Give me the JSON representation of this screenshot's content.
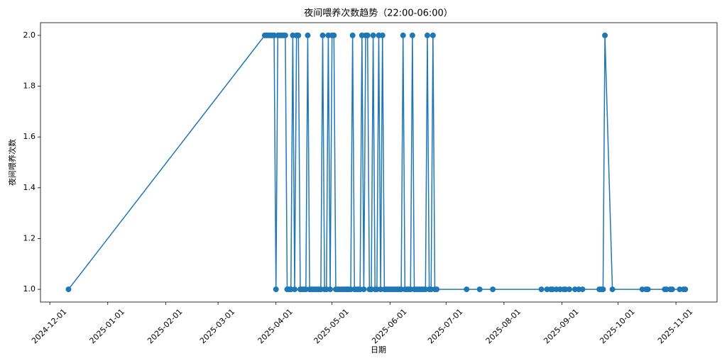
{
  "chart_data": {
    "type": "line",
    "title": "夜间喂养次数趋势（22:00-06:00）",
    "x_label": "日期",
    "y_label": "夜间喂养次数",
    "color": "#1f77b4",
    "x": [
      "2024-12-11",
      "2025-03-26",
      "2025-03-27",
      "2025-03-28",
      "2025-03-29",
      "2025-03-30",
      "2025-03-31",
      "2025-04-01",
      "2025-04-02",
      "2025-04-03",
      "2025-04-04",
      "2025-04-05",
      "2025-04-06",
      "2025-04-07",
      "2025-04-08",
      "2025-04-09",
      "2025-04-10",
      "2025-04-11",
      "2025-04-12",
      "2025-04-13",
      "2025-04-14",
      "2025-04-15",
      "2025-04-16",
      "2025-04-17",
      "2025-04-18",
      "2025-04-19",
      "2025-04-20",
      "2025-04-21",
      "2025-04-22",
      "2025-04-23",
      "2025-04-24",
      "2025-04-25",
      "2025-04-26",
      "2025-04-27",
      "2025-04-28",
      "2025-04-29",
      "2025-04-30",
      "2025-05-01",
      "2025-05-02",
      "2025-05-03",
      "2025-05-04",
      "2025-05-05",
      "2025-05-06",
      "2025-05-07",
      "2025-05-08",
      "2025-05-09",
      "2025-05-10",
      "2025-05-11",
      "2025-05-12",
      "2025-05-13",
      "2025-05-14",
      "2025-05-15",
      "2025-05-16",
      "2025-05-17",
      "2025-05-18",
      "2025-05-19",
      "2025-05-20",
      "2025-05-21",
      "2025-05-22",
      "2025-05-23",
      "2025-05-24",
      "2025-05-25",
      "2025-05-26",
      "2025-05-27",
      "2025-05-28",
      "2025-05-29",
      "2025-05-30",
      "2025-05-31",
      "2025-06-01",
      "2025-06-02",
      "2025-06-03",
      "2025-06-04",
      "2025-06-05",
      "2025-06-06",
      "2025-06-07",
      "2025-06-08",
      "2025-06-09",
      "2025-06-10",
      "2025-06-11",
      "2025-06-12",
      "2025-06-13",
      "2025-06-14",
      "2025-06-15",
      "2025-06-16",
      "2025-06-17",
      "2025-06-18",
      "2025-06-19",
      "2025-06-20",
      "2025-06-21",
      "2025-06-22",
      "2025-06-23",
      "2025-06-24",
      "2025-06-25",
      "2025-06-26",
      "2025-07-12",
      "2025-07-19",
      "2025-07-26",
      "2025-08-21",
      "2025-08-24",
      "2025-08-26",
      "2025-08-27",
      "2025-08-29",
      "2025-08-31",
      "2025-09-02",
      "2025-09-03",
      "2025-09-05",
      "2025-09-08",
      "2025-09-10",
      "2025-09-12",
      "2025-09-21",
      "2025-09-22",
      "2025-09-23",
      "2025-09-24",
      "2025-09-28",
      "2025-10-14",
      "2025-10-16",
      "2025-10-17",
      "2025-10-26",
      "2025-10-27",
      "2025-10-29",
      "2025-10-30",
      "2025-11-03",
      "2025-11-05",
      "2025-11-06"
    ],
    "values": [
      1,
      2,
      2,
      2,
      2,
      2,
      2,
      1,
      2,
      2,
      2,
      2,
      2,
      1,
      1,
      1,
      2,
      1,
      2,
      2,
      1,
      1,
      1,
      1,
      2,
      1,
      1,
      1,
      1,
      1,
      1,
      1,
      2,
      1,
      1,
      2,
      1,
      2,
      2,
      1,
      1,
      1,
      1,
      1,
      1,
      1,
      1,
      1,
      2,
      1,
      1,
      1,
      1,
      2,
      1,
      2,
      2,
      1,
      1,
      2,
      1,
      1,
      2,
      1,
      2,
      1,
      1,
      1,
      1,
      1,
      1,
      1,
      1,
      1,
      1,
      2,
      1,
      1,
      1,
      1,
      2,
      1,
      1,
      1,
      1,
      1,
      1,
      1,
      2,
      1,
      1,
      2,
      1,
      1,
      1,
      1,
      1,
      1,
      1,
      1,
      1,
      1,
      1,
      1,
      1,
      1,
      1,
      1,
      1,
      1,
      1,
      1,
      2,
      1,
      1,
      1,
      1,
      1,
      1,
      1,
      1,
      1,
      1,
      1
    ],
    "xlim": [
      "2024-11-26",
      "2025-11-23"
    ],
    "xticks": [
      "2024-12-01",
      "2025-01-01",
      "2025-02-01",
      "2025-03-01",
      "2025-04-01",
      "2025-05-01",
      "2025-06-01",
      "2025-07-01",
      "2025-08-01",
      "2025-09-01",
      "2025-10-01",
      "2025-11-01"
    ],
    "ylim": [
      0.95,
      2.05
    ],
    "yticks": [
      {
        "value": 1,
        "label": "1.0"
      },
      1.2,
      1.4,
      1.6,
      1.8,
      {
        "value": 2,
        "label": "2.0"
      }
    ]
  }
}
